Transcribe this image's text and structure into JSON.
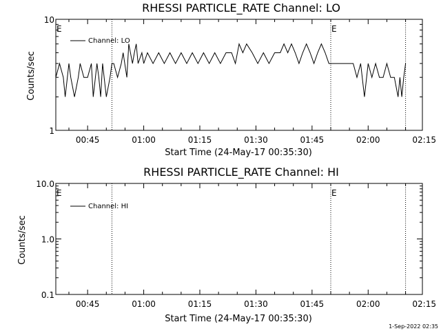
{
  "footer": {
    "timestamp": "1-Sep-2022 02:35"
  },
  "chart_data": [
    {
      "type": "line",
      "title": "RHESSI PARTICLE_RATE Channel: LO",
      "xlabel": "Start Time (24-May-17 00:35:30)",
      "ylabel": "Counts/sec",
      "yscale": "log",
      "ylim": [
        1,
        10
      ],
      "ytick_labels": [
        "1",
        "10"
      ],
      "xlim": [
        "00:36:30",
        "02:14:30"
      ],
      "xtick_labels": [
        "00:45",
        "01:00",
        "01:15",
        "01:30",
        "01:45",
        "02:00",
        "02:15"
      ],
      "event_markers": {
        "label": "E",
        "times": [
          "00:36:30",
          "01:50:00"
        ]
      },
      "dotted_lines": [
        "00:51:30",
        "01:50:00",
        "02:10:00"
      ],
      "legend": {
        "placement": "top-left",
        "entries": [
          "Channel: LO"
        ]
      },
      "series": [
        {
          "name": "Channel: LO",
          "times": [
            "00:36:30",
            "00:37:30",
            "00:38:30",
            "00:39:00",
            "00:40:00",
            "00:40:30",
            "00:41:30",
            "00:42:30",
            "00:43:00",
            "00:44:00",
            "00:45:00",
            "00:46:00",
            "00:46:30",
            "00:47:30",
            "00:48:00",
            "00:48:30",
            "00:49:00",
            "00:50:00",
            "00:51:00",
            "00:51:30",
            "00:52:00",
            "00:53:00",
            "00:54:00",
            "00:54:30",
            "00:55:30",
            "00:56:00",
            "00:57:00",
            "00:57:30",
            "00:58:00",
            "00:58:30",
            "00:59:30",
            "01:00:00",
            "01:01:00",
            "01:02:30",
            "01:04:00",
            "01:05:30",
            "01:07:00",
            "01:08:30",
            "01:10:00",
            "01:11:30",
            "01:13:00",
            "01:14:30",
            "01:16:00",
            "01:17:30",
            "01:19:00",
            "01:20:30",
            "01:22:00",
            "01:23:30",
            "01:24:30",
            "01:25:30",
            "01:26:30",
            "01:27:30",
            "01:29:00",
            "01:30:30",
            "01:32:00",
            "01:33:30",
            "01:35:00",
            "01:36:30",
            "01:37:30",
            "01:38:30",
            "01:39:30",
            "01:40:30",
            "01:41:30",
            "01:42:30",
            "01:43:30",
            "01:44:30",
            "01:45:30",
            "01:46:30",
            "01:47:30",
            "01:48:30",
            "01:49:30",
            "01:50:00",
            "01:51:00",
            "01:53:00",
            "01:54:30",
            "01:56:00",
            "01:57:00",
            "01:58:00",
            "01:59:00",
            "02:00:00",
            "02:01:00",
            "02:02:00",
            "02:03:00",
            "02:04:00",
            "02:05:00",
            "02:06:00",
            "02:07:00",
            "02:08:00",
            "02:08:30",
            "02:09:00",
            "02:09:30",
            "02:10:00"
          ],
          "values": [
            3,
            4,
            3,
            2,
            4,
            3,
            2,
            3,
            4,
            3,
            3,
            4,
            2,
            4,
            3,
            2,
            4,
            2,
            3,
            4,
            4,
            3,
            4,
            5,
            3,
            6,
            4,
            5,
            6,
            4,
            5,
            4,
            5,
            4,
            5,
            4,
            5,
            4,
            5,
            4,
            5,
            4,
            5,
            4,
            5,
            4,
            5,
            5,
            4,
            6,
            5,
            6,
            5,
            4,
            5,
            4,
            5,
            5,
            6,
            5,
            6,
            5,
            4,
            5,
            6,
            5,
            4,
            5,
            6,
            5,
            4,
            4,
            4,
            4,
            4,
            4,
            3,
            4,
            2,
            4,
            3,
            4,
            3,
            3,
            4,
            3,
            3,
            2,
            3,
            2,
            3,
            4
          ]
        }
      ]
    },
    {
      "type": "line",
      "title": "RHESSI PARTICLE_RATE Channel: HI",
      "xlabel": "Start Time (24-May-17 00:35:30)",
      "ylabel": "Counts/sec",
      "yscale": "log",
      "ylim": [
        0.1,
        10
      ],
      "ytick_labels": [
        "0.1",
        "1.0",
        "10.0"
      ],
      "xlim": [
        "00:36:30",
        "02:14:30"
      ],
      "xtick_labels": [
        "00:45",
        "01:00",
        "01:15",
        "01:30",
        "01:45",
        "02:00",
        "02:15"
      ],
      "event_markers": {
        "label": "E",
        "times": [
          "00:36:30",
          "01:50:00"
        ]
      },
      "dotted_lines": [
        "00:51:30",
        "01:50:00",
        "02:10:00"
      ],
      "legend": {
        "placement": "top-left",
        "entries": [
          "Channel: HI"
        ]
      },
      "series": [
        {
          "name": "Channel: HI",
          "times": [],
          "values": []
        }
      ]
    }
  ]
}
